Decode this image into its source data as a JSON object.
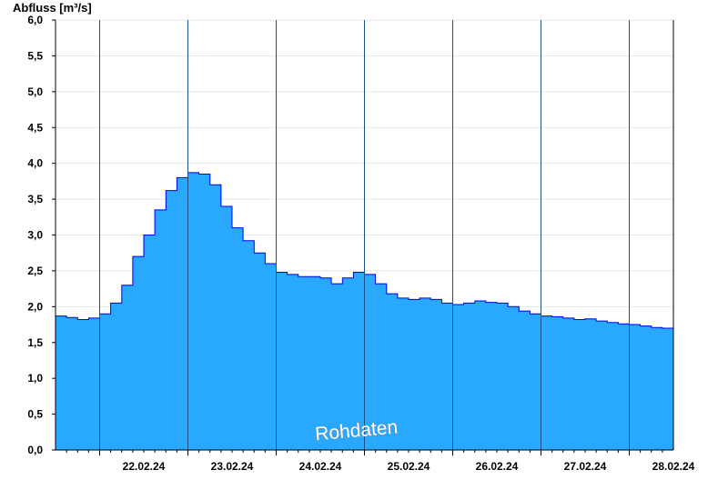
{
  "chart_data": {
    "type": "area",
    "ylabel": "Abfluss [m³/s]",
    "watermark": "Rohdaten",
    "ylim": [
      0,
      6.0
    ],
    "xlim": [
      "21.02.24 12:00",
      "28.02.24 12:00"
    ],
    "yticks": [
      "0,0",
      "0,5",
      "1,0",
      "1,5",
      "2,0",
      "2,5",
      "3,0",
      "3,5",
      "4,0",
      "4,5",
      "5,0",
      "5,5",
      "6,0"
    ],
    "day_labels": [
      "22.02.24",
      "23.02.24",
      "24.02.24",
      "25.02.24",
      "26.02.24",
      "27.02.24",
      "28.02.24"
    ],
    "grid": true,
    "colors": {
      "fill": "#29a8ff",
      "line": "#0000ee",
      "grid": "#e6e6e6"
    },
    "series": [
      {
        "x": [
          "21.02.24 12:00",
          "21.02.24 15:00",
          "21.02.24 18:00",
          "21.02.24 21:00",
          "22.02.24 00:00",
          "22.02.24 03:00",
          "22.02.24 06:00",
          "22.02.24 09:00",
          "22.02.24 12:00",
          "22.02.24 15:00",
          "22.02.24 18:00",
          "22.02.24 21:00",
          "23.02.24 00:00",
          "23.02.24 03:00",
          "23.02.24 06:00",
          "23.02.24 09:00",
          "23.02.24 12:00",
          "23.02.24 15:00",
          "23.02.24 18:00",
          "23.02.24 21:00",
          "24.02.24 00:00",
          "24.02.24 03:00",
          "24.02.24 06:00",
          "24.02.24 09:00",
          "24.02.24 12:00",
          "24.02.24 15:00",
          "24.02.24 18:00",
          "24.02.24 21:00",
          "25.02.24 00:00",
          "25.02.24 03:00",
          "25.02.24 06:00",
          "25.02.24 09:00",
          "25.02.24 12:00",
          "25.02.24 15:00",
          "25.02.24 18:00",
          "25.02.24 21:00",
          "26.02.24 00:00",
          "26.02.24 03:00",
          "26.02.24 06:00",
          "26.02.24 09:00",
          "26.02.24 12:00",
          "26.02.24 15:00",
          "26.02.24 18:00",
          "26.02.24 21:00",
          "27.02.24 00:00",
          "27.02.24 03:00",
          "27.02.24 06:00",
          "27.02.24 09:00",
          "27.02.24 12:00",
          "27.02.24 15:00",
          "27.02.24 18:00",
          "27.02.24 21:00",
          "28.02.24 00:00",
          "28.02.24 03:00",
          "28.02.24 06:00",
          "28.02.24 09:00",
          "28.02.24 12:00"
        ],
        "y": [
          1.87,
          1.85,
          1.82,
          1.84,
          1.9,
          2.05,
          2.3,
          2.7,
          3.0,
          3.35,
          3.62,
          3.8,
          3.87,
          3.85,
          3.7,
          3.4,
          3.1,
          2.92,
          2.75,
          2.6,
          2.48,
          2.45,
          2.42,
          2.42,
          2.4,
          2.32,
          2.4,
          2.48,
          2.45,
          2.32,
          2.18,
          2.12,
          2.1,
          2.12,
          2.1,
          2.05,
          2.03,
          2.05,
          2.08,
          2.06,
          2.05,
          2.0,
          1.94,
          1.9,
          1.87,
          1.86,
          1.84,
          1.82,
          1.83,
          1.8,
          1.78,
          1.76,
          1.75,
          1.73,
          1.71,
          1.7,
          1.68
        ]
      }
    ]
  }
}
